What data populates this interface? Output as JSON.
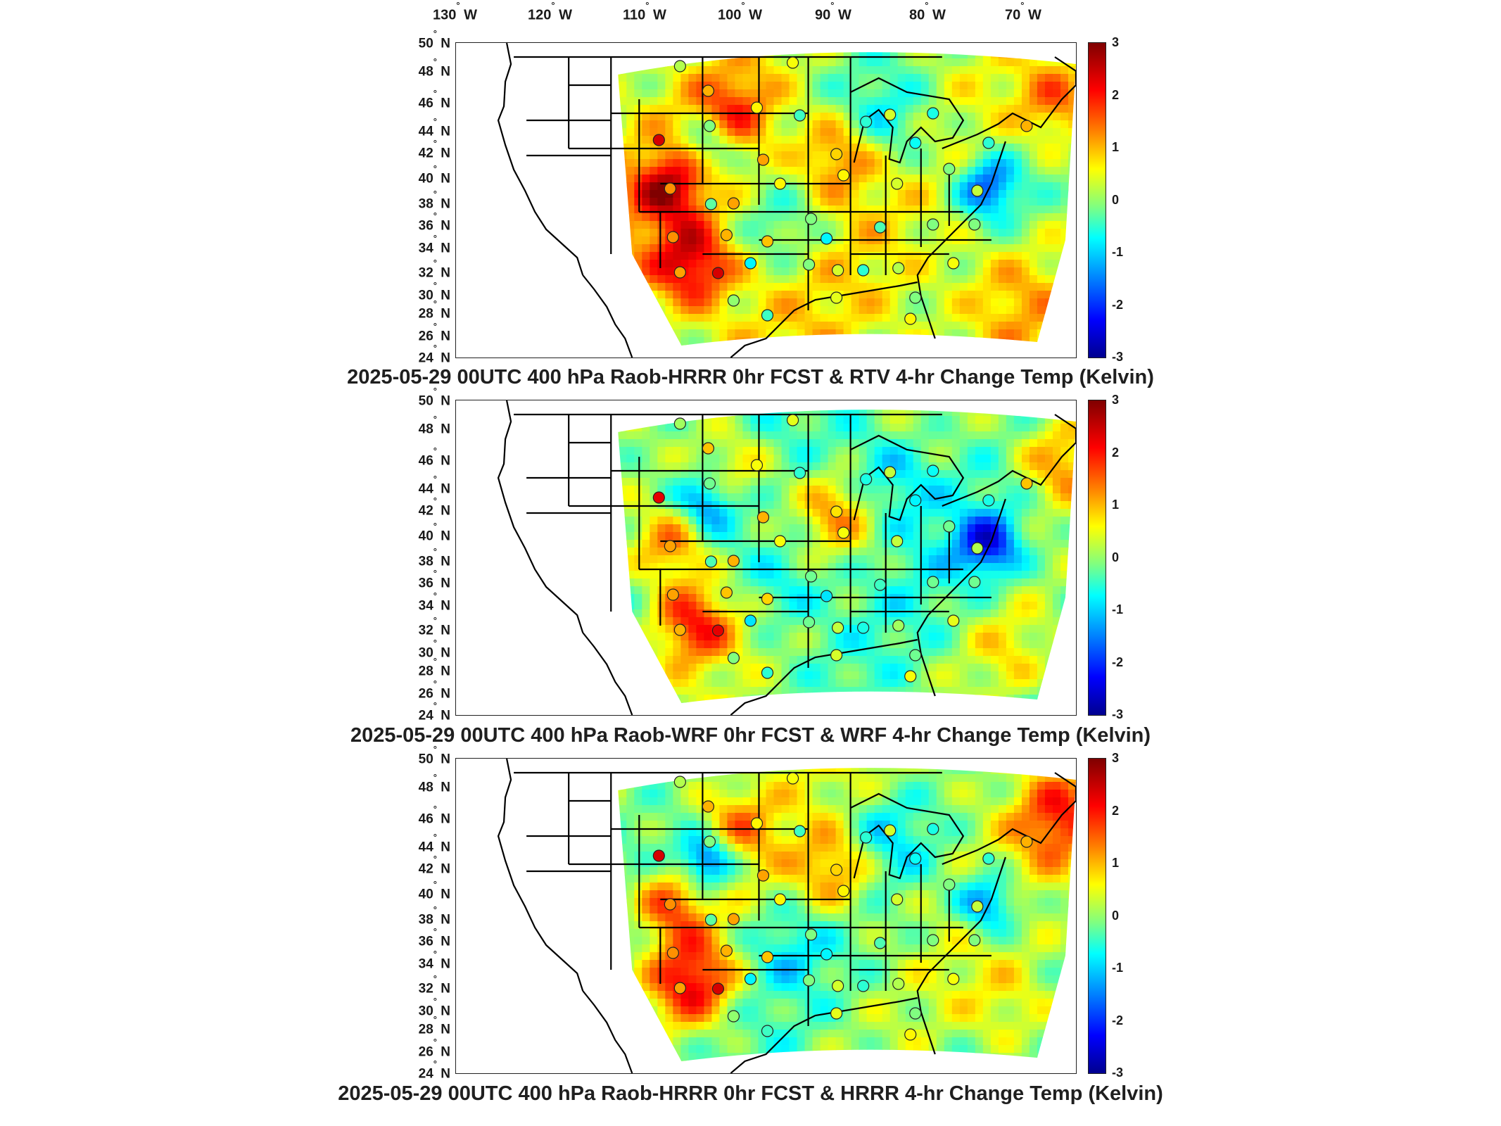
{
  "lon_labels": [
    {
      "deg": "130",
      "hem": "W"
    },
    {
      "deg": "120",
      "hem": "W"
    },
    {
      "deg": "110",
      "hem": "W"
    },
    {
      "deg": "100",
      "hem": "W"
    },
    {
      "deg": "90",
      "hem": "W"
    },
    {
      "deg": "80",
      "hem": "W"
    },
    {
      "deg": "70",
      "hem": "W"
    }
  ],
  "lat_labels": [
    {
      "deg": "50",
      "hem": "N"
    },
    {
      "deg": "48",
      "hem": "N"
    },
    {
      "deg": "46",
      "hem": "N"
    },
    {
      "deg": "44",
      "hem": "N"
    },
    {
      "deg": "42",
      "hem": "N"
    },
    {
      "deg": "40",
      "hem": "N"
    },
    {
      "deg": "38",
      "hem": "N"
    },
    {
      "deg": "36",
      "hem": "N"
    },
    {
      "deg": "34",
      "hem": "N"
    },
    {
      "deg": "32",
      "hem": "N"
    },
    {
      "deg": "30",
      "hem": "N"
    },
    {
      "deg": "28",
      "hem": "N"
    },
    {
      "deg": "26",
      "hem": "N"
    },
    {
      "deg": "24",
      "hem": "N"
    }
  ],
  "colorbar": {
    "ticks": [
      "3",
      "2",
      "1",
      "0",
      "-1",
      "-2",
      "-3"
    ],
    "range": [
      -3,
      3
    ],
    "colormap": "jet"
  },
  "colors": {
    "dark_red": "#7f0000",
    "red": "#ff0000",
    "orange": "#ff8000",
    "yellow": "#ffff00",
    "green": "#80ff80",
    "cyan": "#00ffff",
    "blue": "#0080ff",
    "dark_blue": "#00008f",
    "boundary": "#000000"
  },
  "panels": [
    {
      "title": "2025-05-29 00UTC 400 hPa Raob-HRRR 0hr FCST & RTV 4-hr Change Temp (Kelvin)"
    },
    {
      "title": "2025-05-29 00UTC 400 hPa Raob-WRF 0hr FCST & WRF 4-hr Change Temp (Kelvin)"
    },
    {
      "title": "2025-05-29 00UTC 400 hPa Raob-HRRR 0hr FCST & HRRR 4-hr Change Temp (Kelvin)"
    }
  ]
}
